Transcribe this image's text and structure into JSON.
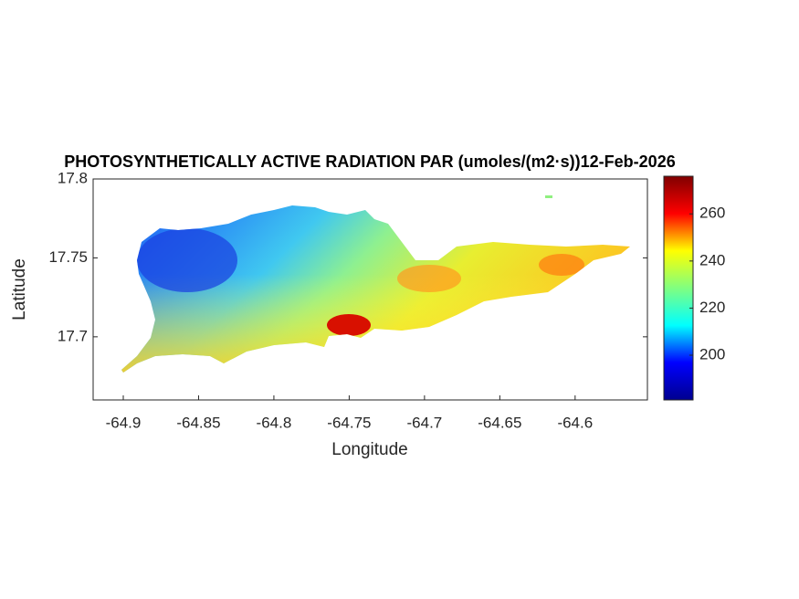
{
  "chart_data": {
    "type": "map",
    "title": "PHOTOSYNTHETICALLY ACTIVE RADIATION PAR (umoles/(m2·s))12-Feb-2026",
    "xlabel": "Longitude",
    "ylabel": "Latitude",
    "xlim": [
      -64.92,
      -64.552
    ],
    "xticks": [
      -64.9,
      -64.85,
      -64.8,
      -64.75,
      -64.7,
      -64.65,
      -64.6
    ],
    "ylim": [
      17.66,
      17.8
    ],
    "yticks": [
      17.7,
      17.75,
      17.8
    ],
    "colormap": "jet",
    "clim": [
      181,
      276
    ],
    "cticks": [
      200,
      220,
      240,
      260
    ]
  }
}
